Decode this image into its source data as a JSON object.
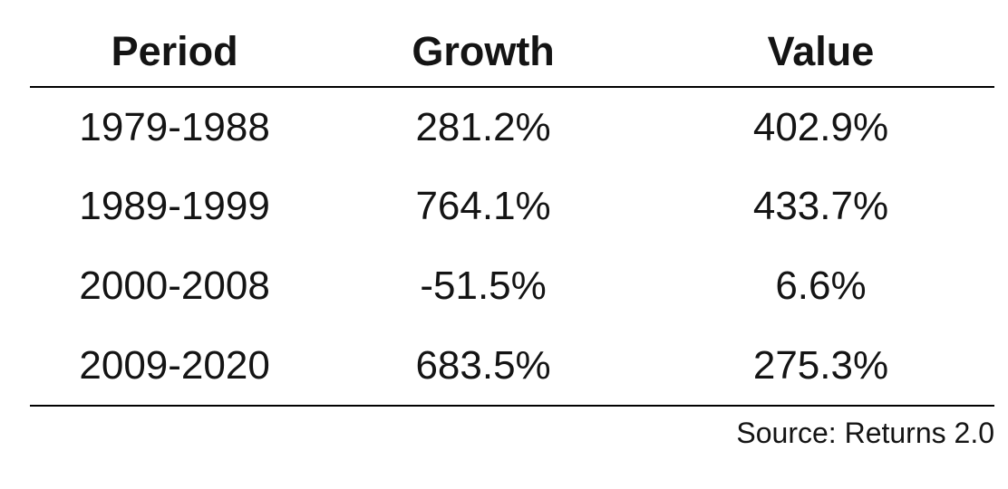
{
  "chart_data": {
    "type": "table",
    "columns": [
      "Period",
      "Growth",
      "Value"
    ],
    "rows": [
      [
        "1979-1988",
        "281.2%",
        "402.9%"
      ],
      [
        "1989-1999",
        "764.1%",
        "433.7%"
      ],
      [
        "2000-2008",
        "-51.5%",
        "6.6%"
      ],
      [
        "2009-2020",
        "683.5%",
        "275.3%"
      ]
    ],
    "categories": [
      "1979-1988",
      "1989-1999",
      "2000-2008",
      "2009-2020"
    ],
    "series": [
      {
        "name": "Growth",
        "values": [
          281.2,
          764.1,
          -51.5,
          683.5
        ]
      },
      {
        "name": "Value",
        "values": [
          402.9,
          433.7,
          6.6,
          275.3
        ]
      }
    ],
    "unit": "%",
    "source_note": "Source: Returns 2.0",
    "colors": {
      "text": "#141414",
      "rule": "#000000",
      "background": "#ffffff"
    }
  }
}
